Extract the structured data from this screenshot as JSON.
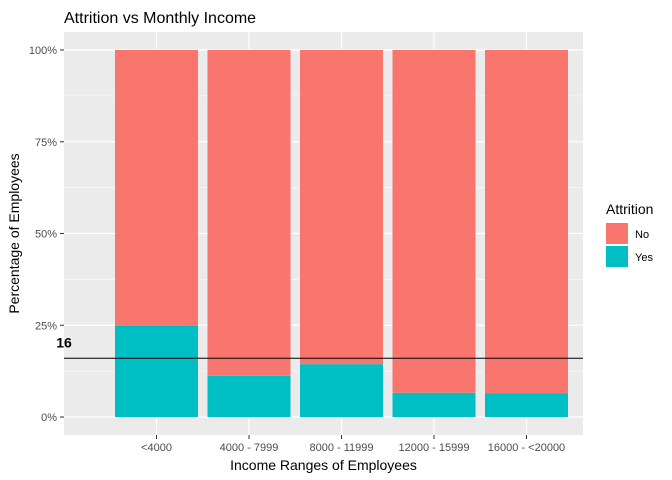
{
  "chart_data": {
    "type": "bar",
    "stacked": "percent",
    "title": "Attrition vs Monthly Income",
    "xlabel": "Income Ranges of Employees",
    "ylabel": "Percentage of Employees",
    "categories": [
      "<4000",
      "4000 - 7999",
      "8000 - 11999",
      "12000 - 15999",
      "16000 - <20000"
    ],
    "series": [
      {
        "name": "No",
        "color": "#F8766D",
        "values": [
          75.2,
          88.8,
          85.6,
          93.4,
          93.6
        ]
      },
      {
        "name": "Yes",
        "color": "#00BFC4",
        "values": [
          24.8,
          11.2,
          14.4,
          6.6,
          6.4
        ]
      }
    ],
    "ylim": [
      0,
      100
    ],
    "yticks": [
      0,
      25,
      50,
      75,
      100
    ],
    "ytick_labels": [
      "0%",
      "25%",
      "50%",
      "75%",
      "100%"
    ],
    "legend": {
      "title": "Attrition",
      "position": "right",
      "entries": [
        "No",
        "Yes"
      ]
    },
    "reference_line": {
      "y": 16,
      "label": "16"
    },
    "panel_background": "#EBEBEB",
    "grid": true
  }
}
